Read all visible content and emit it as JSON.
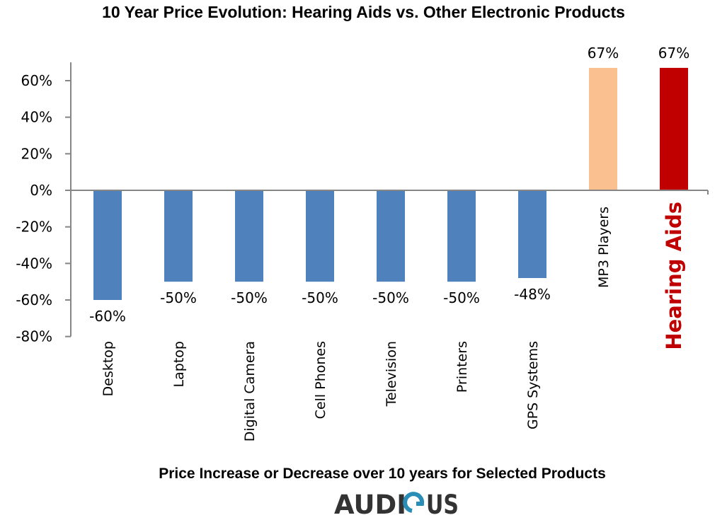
{
  "chart_data": {
    "type": "bar",
    "title": "10 Year Price Evolution: Hearing Aids vs. Other Electronic Products",
    "xlabel": "Price Increase or Decrease over 10 years for Selected Products",
    "ylabel": "",
    "categories": [
      "Desktop",
      "Laptop",
      "Digital Camera",
      "Cell Phones",
      "Television",
      "Printers",
      "GPS Systems",
      "MP3 Players",
      "Hearing Aids"
    ],
    "values": [
      -60,
      -50,
      -50,
      -50,
      -50,
      -50,
      -48,
      67,
      67
    ],
    "data_labels": [
      "-60%",
      "-50%",
      "-50%",
      "-50%",
      "-50%",
      "-50%",
      "-48%",
      "67%",
      "67%"
    ],
    "bar_colors": [
      "#4f81bd",
      "#4f81bd",
      "#4f81bd",
      "#4f81bd",
      "#4f81bd",
      "#4f81bd",
      "#4f81bd",
      "#fac090",
      "#c00000"
    ],
    "highlight_label_color": "#c00000",
    "ylim": [
      -80,
      70
    ],
    "yticks": [
      "60%",
      "40%",
      "20%",
      "0%",
      "-20%",
      "-40%",
      "-60%",
      "-80%"
    ],
    "ytick_values": [
      60,
      40,
      20,
      0,
      -20,
      -40,
      -60,
      -80
    ],
    "grid": false,
    "legend": "none"
  },
  "logo": {
    "text": "AUDIOUS",
    "left": "AUDI",
    "right": "US",
    "accent_color": "#2a8db5"
  }
}
